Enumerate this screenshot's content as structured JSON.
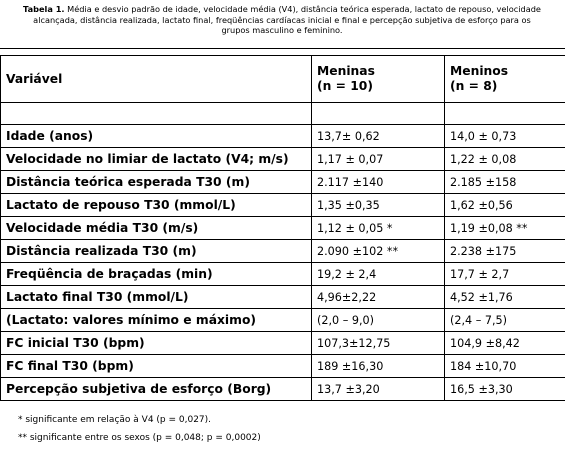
{
  "caption": {
    "label": "Tabela 1.",
    "text": "Média e desvio padrão de idade, velocidade média (V4), distância teórica esperada, lactato de repouso, velocidade alcançada, distância realizada, lactato final, freqüências cardíacas inicial e final e percepção subjetiva de esforço para os grupos masculino e feminino."
  },
  "table": {
    "header": {
      "variable": "Variável",
      "girls_line1": "Meninas",
      "girls_line2": "(n = 10)",
      "boys_line1": "Meninos",
      "boys_line2": "(n = 8)"
    },
    "rows": [
      {
        "variable": "Idade (anos)",
        "girls": "13,7± 0,62",
        "boys": "14,0 ± 0,73"
      },
      {
        "variable": "Velocidade no limiar de lactato (V4; m/s)",
        "girls": "1,17 ± 0,07",
        "boys": "1,22 ± 0,08"
      },
      {
        "variable": "Distância teórica esperada T30 (m)",
        "girls": "2.117 ±140",
        "boys": "2.185 ±158"
      },
      {
        "variable": "Lactato de repouso T30 (mmol/L)",
        "girls": "1,35 ±0,35",
        "boys": "1,62 ±0,56"
      },
      {
        "variable": "Velocidade  média  T30 (m/s)",
        "girls": "1,12 ± 0,05 *",
        "boys": "1,19 ±0,08 **"
      },
      {
        "variable": "Distância realizada T30 (m)",
        "girls": "2.090 ±102 **",
        "boys": "2.238 ±175"
      },
      {
        "variable": "Freqüência de braçadas (min)",
        "girls": "19,2 ± 2,4",
        "boys": "17,7 ± 2,7"
      },
      {
        "variable": "Lactato final T30 (mmol/L)",
        "girls": "4,96±2,22",
        "boys": "4,52 ±1,76"
      },
      {
        "variable": "(Lactato: valores mínimo e máximo)",
        "girls": "(2,0 – 9,0)",
        "boys": "(2,4 – 7,5)"
      },
      {
        "variable": "FC inicial T30 (bpm)",
        "girls": "107,3±12,75",
        "boys": "104,9 ±8,42"
      },
      {
        "variable": "FC final T30 (bpm)",
        "girls": "189 ±16,30",
        "boys": "184 ±10,70"
      },
      {
        "variable": "Percepção subjetiva de esforço (Borg)",
        "girls": "13,7 ±3,20",
        "boys": "16,5 ±3,30"
      }
    ]
  },
  "footnotes": [
    "* significante em relação à V4 (p = 0,027).",
    "** significante entre os sexos (p = 0,048; p = 0,0002)"
  ]
}
